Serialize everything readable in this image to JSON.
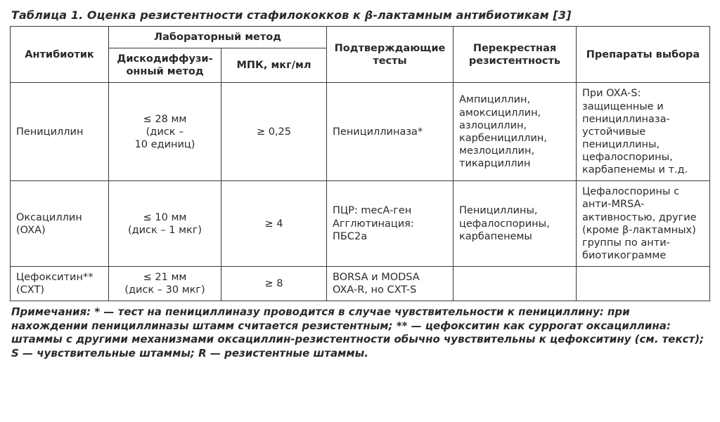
{
  "title": "Таблица 1. Оценка резистентности стафилококков к β-лактамным антибиотикам [3]",
  "headers": {
    "antibiotic": "Антибиотик",
    "lab_method": "Лабораторный метод",
    "disc_diffusion": "Дискодиффузи­онный метод",
    "mpk": "МПК, мкг/мл",
    "confirm": "Подтверждаю­щие тесты",
    "cross": "Перекрестная резистентность",
    "drugs": "Препараты выбора"
  },
  "rows": [
    {
      "antibiotic": "Пенициллин",
      "disc": "≤ 28 мм\n(диск –\n10 единиц)",
      "mpk": "≥ 0,25",
      "confirm": "Пенициллиназа*",
      "cross": "Ампициллин, амоксициллин, азлоциллин, карбенициллин, мезлоциллин, тикарциллин",
      "drugs": "При OXA-S: защищенные и пенициллина­за-устойчивые пенициллины, цефалоспорины, карбапенемы и т.д."
    },
    {
      "antibiotic": "Оксациллин (OXA)",
      "disc": "≤ 10 мм\n(диск – 1 мкг)",
      "mpk": "≥ 4",
      "confirm": "ПЦР: mecA-ген\nАгглютинация: ПБС2а",
      "cross": "Пенициллины, цефалоспорины, карбапенемы",
      "drugs": "Цефалоспорины с анти-MRSA-активностью, другие (кроме β-лактамных) группы по анти­биотикограмме"
    },
    {
      "antibiotic": "Цефокситин** (CXT)",
      "disc": "≤ 21 мм\n(диск – 30 мкг)",
      "mpk": "≥ 8",
      "confirm": "BORSA и MODSA\nOXA-R, но CXT-S",
      "cross": "",
      "drugs": ""
    }
  ],
  "notes": "Примечания: * — тест на пенициллиназу проводится в случае чувствительности к пенициллину: при нахождении пенициллиназы штамм считается резистентным; ** — цефокситин как суррогат оксацил­лина: штаммы с другими механизмами оксациллин-резистентности обычно чувствительны к цефо­кситину (см. текст); S — чувствительные штаммы; R — резистентные штаммы."
}
